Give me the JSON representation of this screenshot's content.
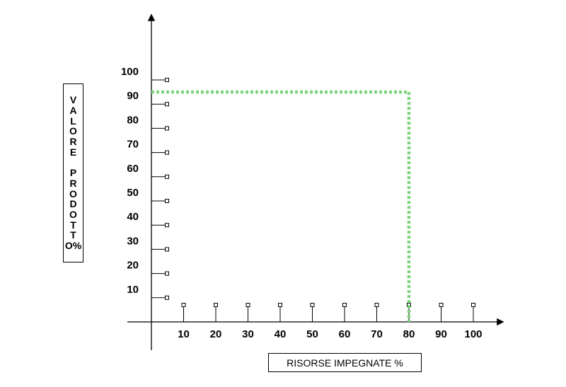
{
  "chart_data": {
    "type": "line",
    "xlabel": "RISORSE IMPEGNATE %",
    "ylabel": "VALORE PRODOTTO%",
    "x_ticks": [
      10,
      20,
      30,
      40,
      50,
      60,
      70,
      80,
      90,
      100
    ],
    "y_ticks": [
      10,
      20,
      30,
      40,
      50,
      60,
      70,
      80,
      90,
      100
    ],
    "xlim": [
      0,
      100
    ],
    "ylim": [
      0,
      100
    ],
    "grid": false,
    "series": [
      {
        "x": [
          0,
          80,
          80
        ],
        "y": [
          95,
          95,
          0
        ],
        "color": "#7ed37e",
        "style": "dotted"
      }
    ]
  }
}
